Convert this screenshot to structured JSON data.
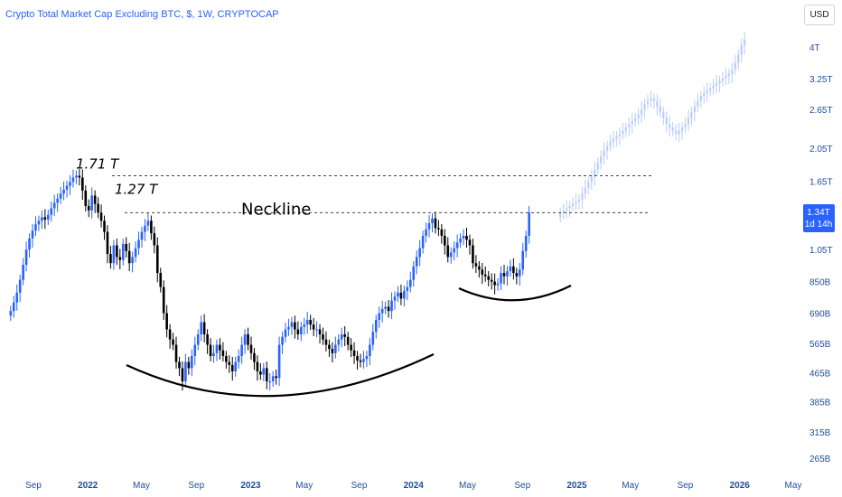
{
  "header": {
    "title": "Crypto Total Market Cap Excluding BTC, $, 1W, CRYPTOCAP",
    "currency_button": "USD"
  },
  "colors": {
    "up": "#2962ff",
    "down": "#000000",
    "projection": "#b8cdf8",
    "accent": "#2962ff"
  },
  "price_label": {
    "value": "1.34T",
    "countdown": "1d 14h"
  },
  "chart_data": {
    "type": "candlestick",
    "title": "Crypto Total Market Cap Excluding BTC, $, 1W, CRYPTOCAP",
    "y_scale": "log",
    "y_unit": "USD",
    "y_ticks": [
      {
        "label": "4T",
        "value": 4000
      },
      {
        "label": "3.25T",
        "value": 3250
      },
      {
        "label": "2.65T",
        "value": 2650
      },
      {
        "label": "2.05T",
        "value": 2050
      },
      {
        "label": "1.65T",
        "value": 1650
      },
      {
        "label": "1.05T",
        "value": 1050
      },
      {
        "label": "850B",
        "value": 850
      },
      {
        "label": "690B",
        "value": 690
      },
      {
        "label": "565B",
        "value": 565
      },
      {
        "label": "465B",
        "value": 465
      },
      {
        "label": "385B",
        "value": 385
      },
      {
        "label": "315B",
        "value": 315
      },
      {
        "label": "265B",
        "value": 265
      }
    ],
    "x_ticks": [
      {
        "label": "Sep",
        "date": "2021-09-01",
        "bold": false
      },
      {
        "label": "2022",
        "date": "2022-01-01",
        "bold": true
      },
      {
        "label": "May",
        "date": "2022-05-01",
        "bold": false
      },
      {
        "label": "Sep",
        "date": "2022-09-01",
        "bold": false
      },
      {
        "label": "2023",
        "date": "2023-01-01",
        "bold": true
      },
      {
        "label": "May",
        "date": "2023-05-01",
        "bold": false
      },
      {
        "label": "Sep",
        "date": "2023-09-01",
        "bold": false
      },
      {
        "label": "2024",
        "date": "2024-01-01",
        "bold": true
      },
      {
        "label": "May",
        "date": "2024-05-01",
        "bold": false
      },
      {
        "label": "Sep",
        "date": "2024-09-01",
        "bold": false
      },
      {
        "label": "2025",
        "date": "2025-01-01",
        "bold": true
      },
      {
        "label": "May",
        "date": "2025-05-01",
        "bold": false
      },
      {
        "label": "Sep",
        "date": "2025-09-01",
        "bold": false
      },
      {
        "label": "2026",
        "date": "2026-01-01",
        "bold": true
      },
      {
        "label": "May",
        "date": "2026-05-01",
        "bold": false
      }
    ],
    "annotations": {
      "level_high": {
        "label": "1.71 T",
        "value": 1710
      },
      "level_neck": {
        "label": "1.27 T",
        "value": 1270
      },
      "neckline": {
        "label": "Neckline",
        "value": 1340
      }
    },
    "series": [
      {
        "role": "historical",
        "first_date": "2021-07-12",
        "interval_days": 7,
        "closes": [
          700,
          740,
          790,
          860,
          950,
          1050,
          1130,
          1190,
          1240,
          1270,
          1300,
          1280,
          1320,
          1380,
          1430,
          1470,
          1520,
          1560,
          1600,
          1640,
          1690,
          1710,
          1690,
          1550,
          1400,
          1360,
          1500,
          1420,
          1340,
          1270,
          1180,
          1020,
          960,
          1080,
          1000,
          980,
          1090,
          1040,
          960,
          1000,
          1060,
          1120,
          1180,
          1230,
          1270,
          1170,
          1080,
          900,
          820,
          690,
          620,
          580,
          560,
          500,
          480,
          440,
          500,
          480,
          520,
          560,
          600,
          650,
          600,
          560,
          520,
          530,
          560,
          540,
          520,
          500,
          490,
          470,
          500,
          520,
          560,
          600,
          560,
          530,
          500,
          470,
          460,
          480,
          440,
          440,
          455,
          450,
          560,
          590,
          620,
          630,
          650,
          620,
          600,
          630,
          640,
          660,
          640,
          620,
          620,
          600,
          580,
          560,
          545,
          530,
          560,
          580,
          600,
          590,
          560,
          540,
          520,
          505,
          500,
          510,
          520,
          560,
          610,
          660,
          690,
          710,
          720,
          700,
          750,
          770,
          790,
          760,
          800,
          820,
          860,
          940,
          1000,
          1060,
          1150,
          1200,
          1250,
          1290,
          1210,
          1200,
          1150,
          1080,
          1000,
          1030,
          1060,
          1100,
          1130,
          1150,
          1120,
          1080,
          960,
          940,
          920,
          890,
          880,
          860,
          850,
          830,
          840,
          900,
          880,
          910,
          940,
          900,
          880,
          920,
          1040,
          1150,
          1340
        ]
      },
      {
        "role": "projection",
        "first_date": "2024-11-25",
        "interval_days": 7,
        "closes": [
          1340,
          1360,
          1380,
          1400,
          1420,
          1440,
          1460,
          1520,
          1580,
          1640,
          1700,
          1780,
          1860,
          1940,
          2020,
          2080,
          2140,
          2180,
          2220,
          2250,
          2300,
          2350,
          2400,
          2450,
          2500,
          2550,
          2650,
          2750,
          2800,
          2850,
          2800,
          2700,
          2600,
          2500,
          2400,
          2350,
          2300,
          2250,
          2300,
          2350,
          2400,
          2500,
          2600,
          2700,
          2800,
          2900,
          2950,
          3000,
          3050,
          3100,
          3150,
          3200,
          3250,
          3300,
          3350,
          3450,
          3600,
          3800,
          4050,
          4200
        ]
      }
    ]
  }
}
